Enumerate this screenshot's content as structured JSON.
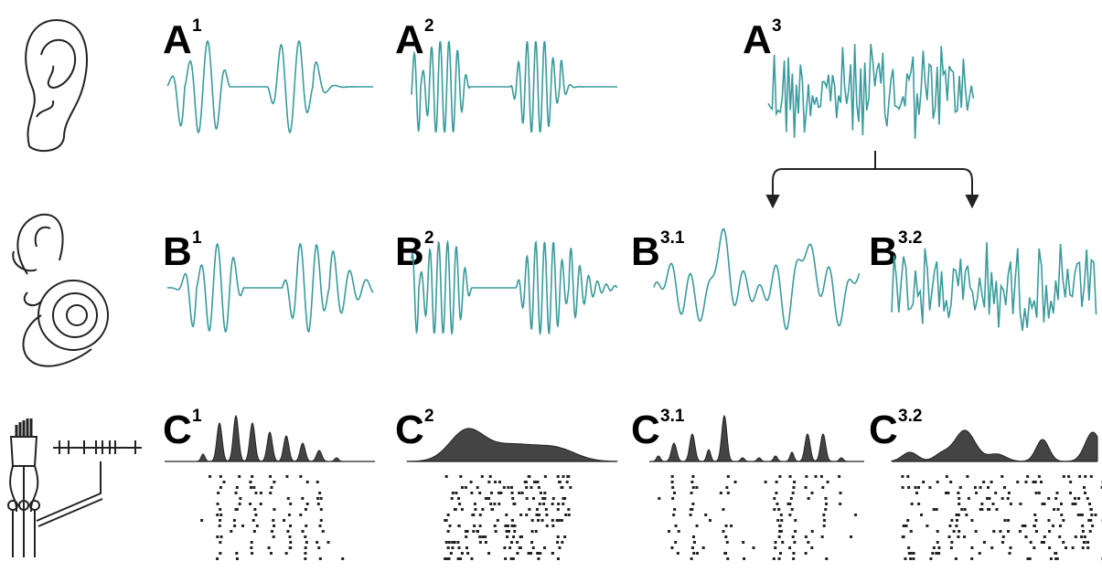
{
  "panels": [
    {
      "letter": "A",
      "sup": "1"
    },
    {
      "letter": "A",
      "sup": "2"
    },
    {
      "letter": "A",
      "sup": "3"
    },
    {
      "letter": "B",
      "sup": "1"
    },
    {
      "letter": "B",
      "sup": "2"
    },
    {
      "letter": "B",
      "sup": "3.1"
    },
    {
      "letter": "B",
      "sup": "3.2"
    },
    {
      "letter": "C",
      "sup": "1"
    },
    {
      "letter": "C",
      "sup": "2"
    },
    {
      "letter": "C",
      "sup": "3.1"
    },
    {
      "letter": "C",
      "sup": "3.2"
    }
  ]
}
